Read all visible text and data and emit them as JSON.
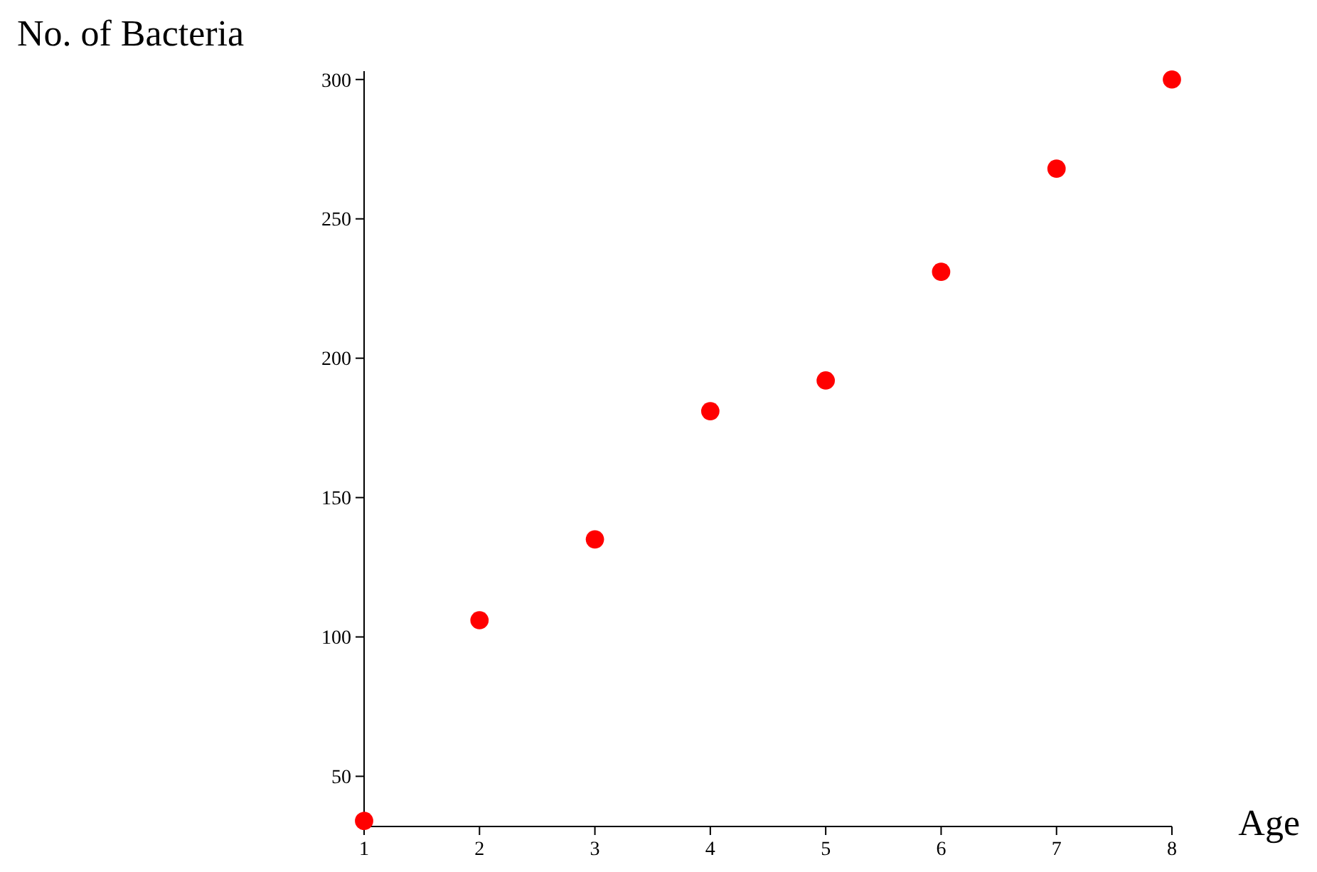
{
  "chart_data": {
    "type": "scatter",
    "xlabel": "Age",
    "ylabel": "No. of Bacteria",
    "x": [
      1,
      2,
      3,
      4,
      5,
      6,
      7,
      8
    ],
    "series": [
      {
        "color": "#ff0000",
        "values": [
          34,
          106,
          135,
          181,
          192,
          231,
          268,
          300
        ]
      }
    ],
    "xlim": [
      1,
      8
    ],
    "xticks": [
      1,
      2,
      3,
      4,
      5,
      6,
      7,
      8
    ],
    "ylim": [
      32,
      303
    ],
    "yticks": [
      50,
      100,
      150,
      200,
      250,
      300
    ],
    "marker": "circle",
    "grid": false
  }
}
